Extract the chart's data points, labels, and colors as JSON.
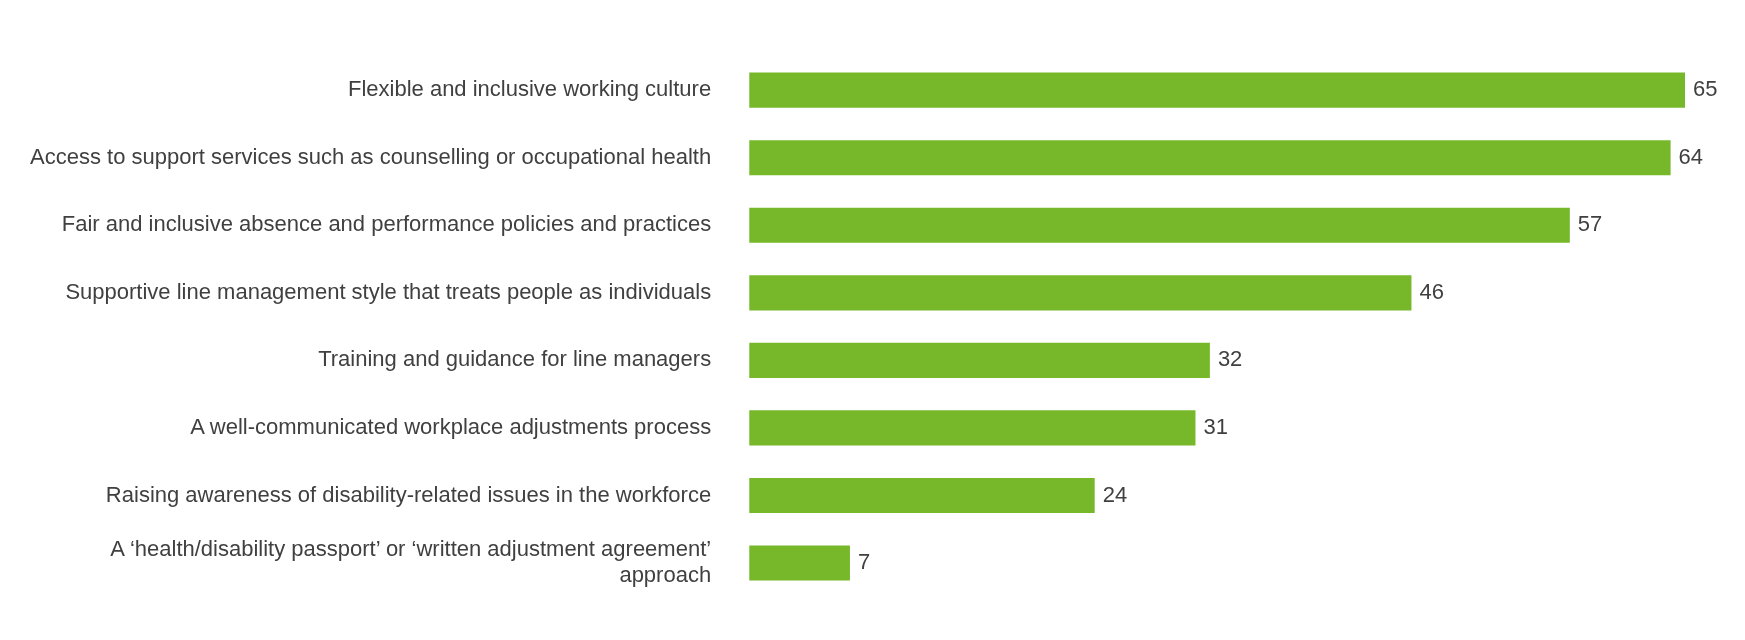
{
  "chart_data": {
    "type": "bar",
    "orientation": "horizontal",
    "categories": [
      "Flexible and inclusive working culture",
      "Access to support services such as counselling or occupational health",
      "Fair and inclusive absence and performance policies and practices",
      "Supportive line management style that treats people as individuals",
      "Training and guidance for line managers",
      "A well-communicated workplace adjustments process",
      "Raising awareness of disability-related issues in the workforce",
      "A ‘health/disability passport’ or ‘written adjustment agreement’ approach"
    ],
    "values": [
      65,
      64,
      57,
      46,
      32,
      31,
      24,
      7
    ],
    "color": "#76b82a",
    "data_labels": true,
    "grid": false,
    "tick_labels": "y"
  }
}
